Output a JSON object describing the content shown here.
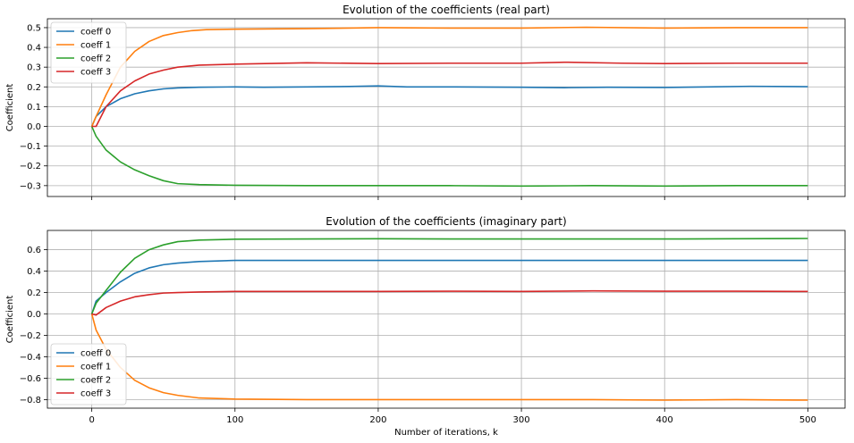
{
  "figure": {
    "xlabel": "Number of iterations, k"
  },
  "chart_data": [
    {
      "type": "line",
      "title": "Evolution of the coefficients (real part)",
      "xlabel": "",
      "ylabel": "Coefficient",
      "xlim": [
        -31,
        526
      ],
      "ylim": [
        -0.355,
        0.545
      ],
      "xticks": [
        0,
        100,
        200,
        300,
        400,
        500
      ],
      "xtick_labels_visible": false,
      "yticks": [
        -0.3,
        -0.2,
        -0.1,
        0.0,
        0.1,
        0.2,
        0.3,
        0.4,
        0.5
      ],
      "ytick_labels": [
        "−0.3",
        "−0.2",
        "−0.1",
        "0.0",
        "0.1",
        "0.2",
        "0.3",
        "0.4",
        "0.5"
      ],
      "grid": true,
      "legend": "upper left",
      "series": [
        {
          "name": "coeff 0",
          "color": "#1f77b4",
          "points": [
            [
              0,
              0
            ],
            [
              3,
              0.05
            ],
            [
              10,
              0.1
            ],
            [
              20,
              0.14
            ],
            [
              30,
              0.165
            ],
            [
              40,
              0.18
            ],
            [
              50,
              0.19
            ],
            [
              60,
              0.195
            ],
            [
              75,
              0.198
            ],
            [
              100,
              0.2
            ],
            [
              120,
              0.198
            ],
            [
              150,
              0.2
            ],
            [
              180,
              0.202
            ],
            [
              200,
              0.205
            ],
            [
              220,
              0.2
            ],
            [
              250,
              0.2
            ],
            [
              300,
              0.198
            ],
            [
              330,
              0.196
            ],
            [
              360,
              0.198
            ],
            [
              400,
              0.197
            ],
            [
              430,
              0.2
            ],
            [
              460,
              0.203
            ],
            [
              500,
              0.201
            ]
          ]
        },
        {
          "name": "coeff 1",
          "color": "#ff7f0e",
          "points": [
            [
              0,
              0
            ],
            [
              3,
              0.05
            ],
            [
              10,
              0.16
            ],
            [
              20,
              0.3
            ],
            [
              30,
              0.38
            ],
            [
              40,
              0.43
            ],
            [
              50,
              0.46
            ],
            [
              60,
              0.475
            ],
            [
              70,
              0.485
            ],
            [
              80,
              0.49
            ],
            [
              100,
              0.492
            ],
            [
              150,
              0.495
            ],
            [
              200,
              0.5
            ],
            [
              250,
              0.498
            ],
            [
              300,
              0.498
            ],
            [
              345,
              0.502
            ],
            [
              400,
              0.498
            ],
            [
              450,
              0.5
            ],
            [
              500,
              0.5
            ]
          ]
        },
        {
          "name": "coeff 2",
          "color": "#2ca02c",
          "points": [
            [
              0,
              0
            ],
            [
              3,
              -0.05
            ],
            [
              10,
              -0.12
            ],
            [
              20,
              -0.18
            ],
            [
              30,
              -0.22
            ],
            [
              40,
              -0.25
            ],
            [
              50,
              -0.275
            ],
            [
              60,
              -0.29
            ],
            [
              75,
              -0.295
            ],
            [
              100,
              -0.298
            ],
            [
              150,
              -0.3
            ],
            [
              200,
              -0.3
            ],
            [
              250,
              -0.3
            ],
            [
              300,
              -0.302
            ],
            [
              350,
              -0.3
            ],
            [
              400,
              -0.302
            ],
            [
              450,
              -0.3
            ],
            [
              500,
              -0.3
            ]
          ]
        },
        {
          "name": "coeff 3",
          "color": "#d62728",
          "points": [
            [
              0,
              0
            ],
            [
              3,
              0.0
            ],
            [
              10,
              0.1
            ],
            [
              20,
              0.18
            ],
            [
              30,
              0.23
            ],
            [
              40,
              0.265
            ],
            [
              50,
              0.285
            ],
            [
              60,
              0.3
            ],
            [
              75,
              0.31
            ],
            [
              100,
              0.315
            ],
            [
              150,
              0.322
            ],
            [
              200,
              0.318
            ],
            [
              250,
              0.32
            ],
            [
              300,
              0.32
            ],
            [
              330,
              0.325
            ],
            [
              370,
              0.32
            ],
            [
              400,
              0.318
            ],
            [
              450,
              0.32
            ],
            [
              500,
              0.32
            ]
          ]
        }
      ]
    },
    {
      "type": "line",
      "title": "Evolution of the coefficients (imaginary part)",
      "xlabel": "Number of iterations, k",
      "ylabel": "Coefficient",
      "xlim": [
        -31,
        526
      ],
      "ylim": [
        -0.88,
        0.78
      ],
      "xticks": [
        0,
        100,
        200,
        300,
        400,
        500
      ],
      "xtick_labels": [
        "0",
        "100",
        "200",
        "300",
        "400",
        "500"
      ],
      "yticks": [
        -0.8,
        -0.6,
        -0.4,
        -0.2,
        0.0,
        0.2,
        0.4,
        0.6
      ],
      "ytick_labels": [
        "−0.8",
        "−0.6",
        "−0.4",
        "−0.2",
        "0.0",
        "0.2",
        "0.4",
        "0.6"
      ],
      "grid": true,
      "legend": "lower left",
      "series": [
        {
          "name": "coeff 0",
          "color": "#1f77b4",
          "points": [
            [
              0,
              0
            ],
            [
              3,
              0.12
            ],
            [
              10,
              0.2
            ],
            [
              20,
              0.3
            ],
            [
              30,
              0.38
            ],
            [
              40,
              0.43
            ],
            [
              50,
              0.46
            ],
            [
              60,
              0.475
            ],
            [
              75,
              0.49
            ],
            [
              100,
              0.5
            ],
            [
              150,
              0.5
            ],
            [
              200,
              0.5
            ],
            [
              250,
              0.5
            ],
            [
              300,
              0.5
            ],
            [
              350,
              0.5
            ],
            [
              400,
              0.5
            ],
            [
              450,
              0.5
            ],
            [
              500,
              0.5
            ]
          ]
        },
        {
          "name": "coeff 1",
          "color": "#ff7f0e",
          "points": [
            [
              0,
              0
            ],
            [
              3,
              -0.15
            ],
            [
              10,
              -0.33
            ],
            [
              20,
              -0.5
            ],
            [
              30,
              -0.62
            ],
            [
              40,
              -0.69
            ],
            [
              50,
              -0.735
            ],
            [
              60,
              -0.76
            ],
            [
              75,
              -0.785
            ],
            [
              100,
              -0.795
            ],
            [
              150,
              -0.8
            ],
            [
              200,
              -0.8
            ],
            [
              250,
              -0.8
            ],
            [
              300,
              -0.8
            ],
            [
              350,
              -0.8
            ],
            [
              400,
              -0.805
            ],
            [
              450,
              -0.8
            ],
            [
              500,
              -0.805
            ]
          ]
        },
        {
          "name": "coeff 2",
          "color": "#2ca02c",
          "points": [
            [
              0,
              0
            ],
            [
              3,
              0.1
            ],
            [
              10,
              0.22
            ],
            [
              20,
              0.39
            ],
            [
              30,
              0.52
            ],
            [
              40,
              0.6
            ],
            [
              50,
              0.645
            ],
            [
              60,
              0.675
            ],
            [
              75,
              0.69
            ],
            [
              100,
              0.698
            ],
            [
              150,
              0.7
            ],
            [
              200,
              0.702
            ],
            [
              250,
              0.7
            ],
            [
              300,
              0.7
            ],
            [
              350,
              0.7
            ],
            [
              400,
              0.7
            ],
            [
              450,
              0.702
            ],
            [
              500,
              0.705
            ]
          ]
        },
        {
          "name": "coeff 3",
          "color": "#d62728",
          "points": [
            [
              0,
              0
            ],
            [
              3,
              -0.01
            ],
            [
              10,
              0.06
            ],
            [
              20,
              0.12
            ],
            [
              30,
              0.16
            ],
            [
              40,
              0.18
            ],
            [
              50,
              0.195
            ],
            [
              60,
              0.2
            ],
            [
              75,
              0.205
            ],
            [
              100,
              0.21
            ],
            [
              150,
              0.21
            ],
            [
              200,
              0.21
            ],
            [
              250,
              0.212
            ],
            [
              300,
              0.21
            ],
            [
              350,
              0.215
            ],
            [
              400,
              0.212
            ],
            [
              450,
              0.212
            ],
            [
              500,
              0.21
            ]
          ]
        }
      ]
    }
  ]
}
